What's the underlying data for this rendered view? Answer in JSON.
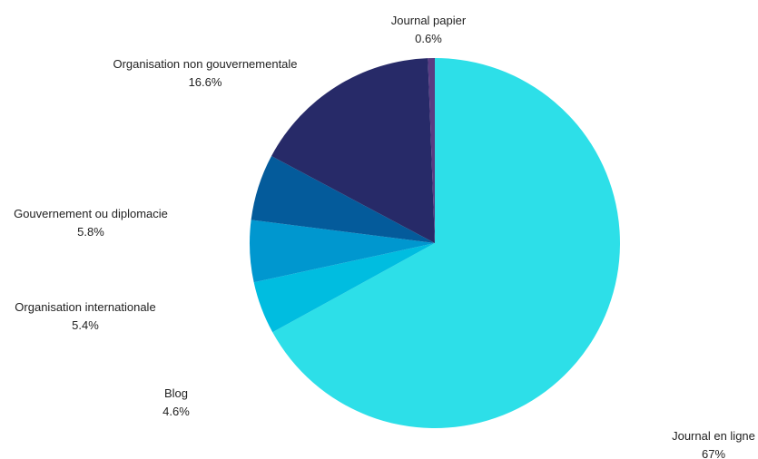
{
  "chart_data": {
    "type": "pie",
    "slices": [
      {
        "label": "Journal en ligne",
        "value": 67,
        "value_label": "67%",
        "color": "#2ddfe8"
      },
      {
        "label": "Blog",
        "value": 4.6,
        "value_label": "4.6%",
        "color": "#00bde0"
      },
      {
        "label": "Organisation internationale",
        "value": 5.4,
        "value_label": "5.4%",
        "color": "#0097cf"
      },
      {
        "label": "Gouvernement ou diplomacie",
        "value": 5.8,
        "value_label": "5.8%",
        "color": "#045b9b"
      },
      {
        "label": "Organisation non gouvernementale",
        "value": 16.6,
        "value_label": "16.6%",
        "color": "#272a68"
      },
      {
        "label": "Journal papier",
        "value": 0.6,
        "value_label": "0.6%",
        "color": "#5a3c82"
      }
    ],
    "start": "12 o'clock",
    "direction": "clockwise"
  }
}
